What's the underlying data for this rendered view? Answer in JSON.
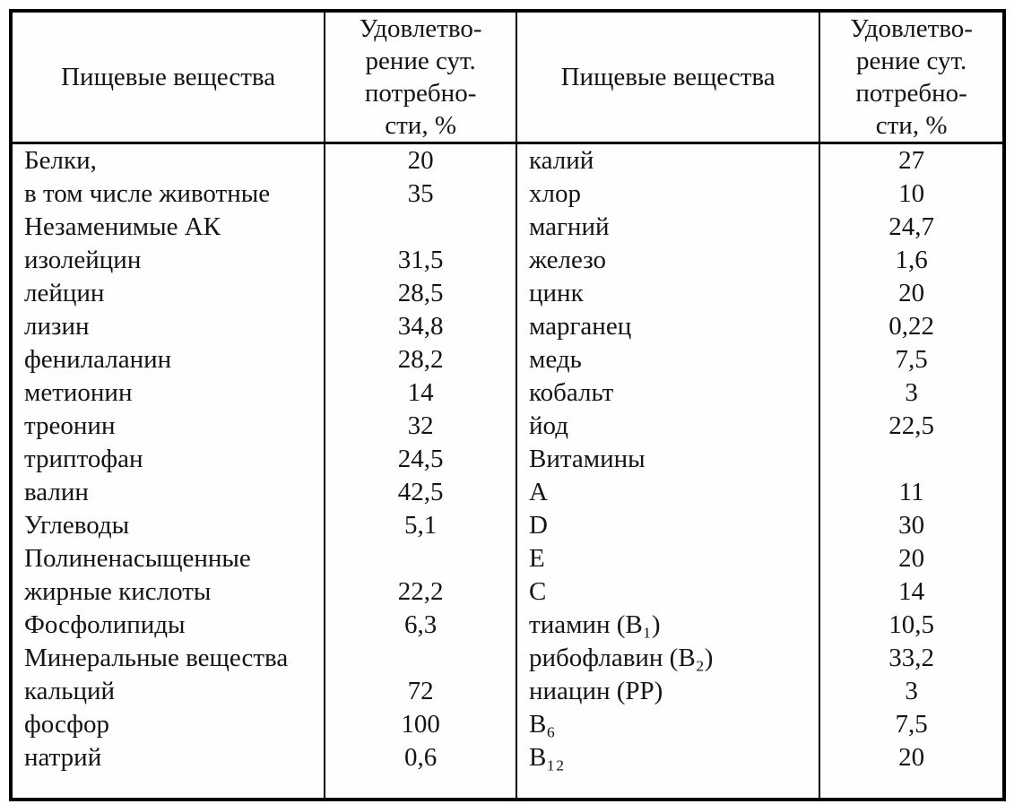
{
  "table": {
    "header": {
      "substances_label": "Пищевые вещества",
      "satisfaction_label": "Удовлетво-\nрение сут.\nпотребно-\nсти, %"
    },
    "left_rows": [
      {
        "name": "Белки,",
        "value": "20"
      },
      {
        "name": "в том числе животные",
        "value": "35"
      },
      {
        "name": "Незаменимые АК",
        "value": ""
      },
      {
        "name": "изолейцин",
        "value": "31,5"
      },
      {
        "name": "лейцин",
        "value": "28,5"
      },
      {
        "name": "лизин",
        "value": "34,8"
      },
      {
        "name": "фенилаланин",
        "value": "28,2"
      },
      {
        "name": "метионин",
        "value": "14"
      },
      {
        "name": "треонин",
        "value": "32"
      },
      {
        "name": "триптофан",
        "value": "24,5"
      },
      {
        "name": "валин",
        "value": "42,5"
      },
      {
        "name": "Углеводы",
        "value": "5,1"
      },
      {
        "name": "Полиненасыщенные",
        "value": ""
      },
      {
        "name": "жирные кислоты",
        "value": "22,2"
      },
      {
        "name": "Фосфолипиды",
        "value": "6,3"
      },
      {
        "name": "Минеральные вещества",
        "value": ""
      },
      {
        "name": "кальций",
        "value": "72"
      },
      {
        "name": "фосфор",
        "value": "100"
      },
      {
        "name": "натрий",
        "value": "0,6"
      }
    ],
    "right_rows": [
      {
        "name": "калий",
        "value": "27"
      },
      {
        "name": "хлор",
        "value": "10"
      },
      {
        "name": "магний",
        "value": "24,7"
      },
      {
        "name": "железо",
        "value": "1,6"
      },
      {
        "name": "цинк",
        "value": "20"
      },
      {
        "name": "марганец",
        "value": "0,22"
      },
      {
        "name": "медь",
        "value": "7,5"
      },
      {
        "name": "кобальт",
        "value": "3"
      },
      {
        "name": "йод",
        "value": "22,5"
      },
      {
        "name": "Витамины",
        "value": ""
      },
      {
        "name": "A",
        "value": "11"
      },
      {
        "name": "D",
        "value": "30"
      },
      {
        "name": "E",
        "value": "20"
      },
      {
        "name": "C",
        "value": "14"
      },
      {
        "name": "тиамин (B₁)",
        "value": "10,5"
      },
      {
        "name": "рибофлавин (B₂)",
        "value": "33,2"
      },
      {
        "name": "ниацин (PP)",
        "value": "3"
      },
      {
        "name": "B₆",
        "value": "7,5"
      },
      {
        "name": "B₁₂",
        "value": "20"
      }
    ],
    "colors": {
      "text": "#141414",
      "border": "#000000",
      "background": "#fefefe"
    }
  }
}
